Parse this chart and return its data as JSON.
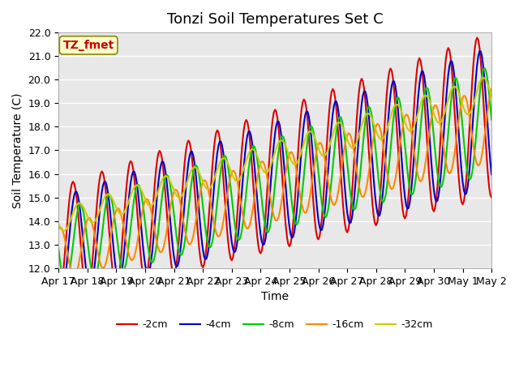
{
  "title": "Tonzi Soil Temperatures Set C",
  "xlabel": "Time",
  "ylabel": "Soil Temperature (C)",
  "annotation": "TZ_fmet",
  "ylim": [
    12.0,
    22.0
  ],
  "yticks": [
    12.0,
    13.0,
    14.0,
    15.0,
    16.0,
    17.0,
    18.0,
    19.0,
    20.0,
    21.0,
    22.0
  ],
  "xtick_labels": [
    "Apr 17",
    "Apr 18",
    "Apr 19",
    "Apr 20",
    "Apr 21",
    "Apr 22",
    "Apr 23",
    "Apr 24",
    "Apr 25",
    "Apr 26",
    "Apr 27",
    "Apr 28",
    "Apr 29",
    "Apr 30",
    "May 1",
    "May 2"
  ],
  "legend_labels": [
    "-2cm",
    "-4cm",
    "-8cm",
    "-16cm",
    "-32cm"
  ],
  "colors": [
    "#dd0000",
    "#0000cc",
    "#00cc00",
    "#ff8800",
    "#cccc00"
  ],
  "linewidths": [
    1.5,
    1.5,
    1.5,
    1.5,
    1.5
  ],
  "background_color": "#e8e8e8",
  "grid_color": "#ffffff",
  "title_fontsize": 13,
  "label_fontsize": 10,
  "tick_fontsize": 9,
  "annotation_fontsize": 10,
  "annotation_color": "#cc0000",
  "annotation_bg": "#ffffcc",
  "annotation_border": "#888800"
}
